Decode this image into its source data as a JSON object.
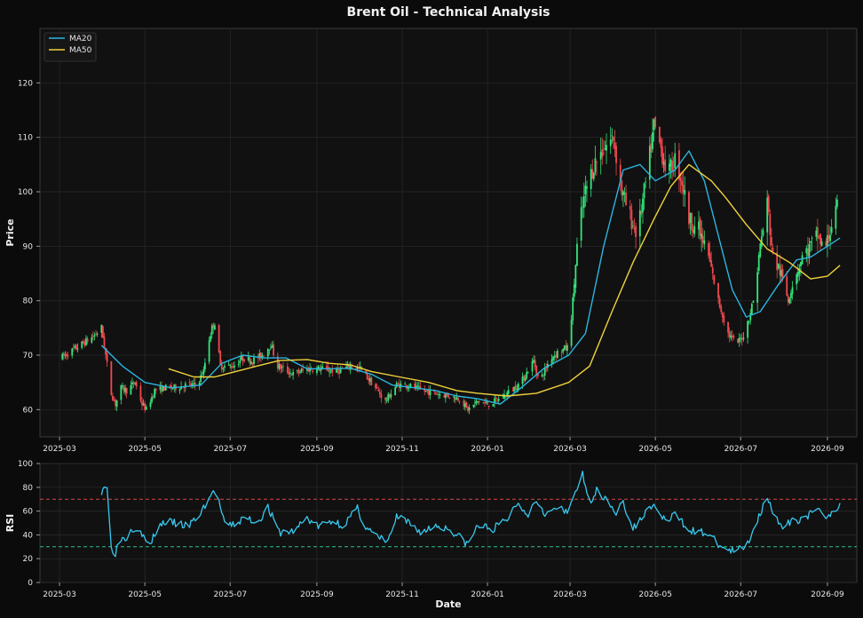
{
  "chart_data": [
    {
      "type": "candlestick",
      "title": "Brent Oil - Technical Analysis",
      "ylabel": "Price",
      "xlim": [
        "2025-02-15",
        "2026-09-22"
      ],
      "ylim": [
        55,
        130
      ],
      "yticks": [
        60,
        70,
        80,
        90,
        100,
        110,
        120
      ],
      "xtick_labels": [
        "2025-03",
        "2025-05",
        "2025-07",
        "2025-09",
        "2025-11",
        "2026-01",
        "2026-03",
        "2026-05",
        "2026-07",
        "2026-09"
      ],
      "grid": true,
      "legend_position": "top-left",
      "colors": {
        "up": "#34e57a",
        "down": "#f0494f",
        "ma20": "#2bb5e0",
        "ma50": "#f0d23c",
        "background": "#0b0b0b",
        "panel": "#111111",
        "text": "#e6e6e6"
      },
      "price_path": [
        [
          "2025-03-02",
          69.5
        ],
        [
          "2025-03-10",
          70.8
        ],
        [
          "2025-03-18",
          72.2
        ],
        [
          "2025-03-26",
          73.6
        ],
        [
          "2025-03-31",
          75
        ],
        [
          "2025-04-03",
          70
        ],
        [
          "2025-04-07",
          63
        ],
        [
          "2025-04-10",
          61
        ],
        [
          "2025-04-14",
          64
        ],
        [
          "2025-04-18",
          63.5
        ],
        [
          "2025-04-24",
          65
        ],
        [
          "2025-04-29",
          61
        ],
        [
          "2025-05-02",
          60
        ],
        [
          "2025-05-08",
          63.5
        ],
        [
          "2025-05-15",
          64
        ],
        [
          "2025-05-22",
          64
        ],
        [
          "2025-05-30",
          64.5
        ],
        [
          "2025-06-07",
          64.5
        ],
        [
          "2025-06-12",
          67
        ],
        [
          "2025-06-15",
          72
        ],
        [
          "2025-06-18",
          75
        ],
        [
          "2025-06-20",
          76
        ],
        [
          "2025-06-24",
          68
        ],
        [
          "2025-07-03",
          68
        ],
        [
          "2025-07-10",
          69.5
        ],
        [
          "2025-07-17",
          69
        ],
        [
          "2025-07-24",
          70
        ],
        [
          "2025-07-30",
          72
        ],
        [
          "2025-08-04",
          68
        ],
        [
          "2025-08-15",
          66.5
        ],
        [
          "2025-08-25",
          67.5
        ],
        [
          "2025-09-05",
          67.5
        ],
        [
          "2025-09-15",
          67
        ],
        [
          "2025-09-25",
          68
        ],
        [
          "2025-10-02",
          67.5
        ],
        [
          "2025-10-10",
          65
        ],
        [
          "2025-10-20",
          61.5
        ],
        [
          "2025-10-28",
          64.5
        ],
        [
          "2025-11-05",
          64.5
        ],
        [
          "2025-11-15",
          63.5
        ],
        [
          "2025-11-25",
          63
        ],
        [
          "2025-12-05",
          62.5
        ],
        [
          "2025-12-12",
          62
        ],
        [
          "2025-12-18",
          60
        ],
        [
          "2025-12-25",
          61.5
        ],
        [
          "2026-01-02",
          61
        ],
        [
          "2026-01-10",
          62
        ],
        [
          "2026-01-20",
          64
        ],
        [
          "2026-01-25",
          65
        ],
        [
          "2026-02-03",
          69
        ],
        [
          "2026-02-07",
          65
        ],
        [
          "2026-02-15",
          69.5
        ],
        [
          "2026-02-20",
          70.5
        ],
        [
          "2026-02-28",
          71.5
        ],
        [
          "2026-03-03",
          80
        ],
        [
          "2026-03-07",
          93
        ],
        [
          "2026-03-12",
          100
        ],
        [
          "2026-03-18",
          105
        ],
        [
          "2026-03-25",
          108
        ],
        [
          "2026-04-01",
          110
        ],
        [
          "2026-04-07",
          100
        ],
        [
          "2026-04-12",
          96
        ],
        [
          "2026-04-18",
          92
        ],
        [
          "2026-04-25",
          103
        ],
        [
          "2026-04-30",
          112
        ],
        [
          "2026-05-05",
          108
        ],
        [
          "2026-05-10",
          103
        ],
        [
          "2026-05-15",
          106
        ],
        [
          "2026-05-20",
          102
        ],
        [
          "2026-05-25",
          95
        ],
        [
          "2026-06-01",
          93
        ],
        [
          "2026-06-08",
          88
        ],
        [
          "2026-06-15",
          80
        ],
        [
          "2026-06-22",
          74
        ],
        [
          "2026-06-28",
          72
        ],
        [
          "2026-07-04",
          74
        ],
        [
          "2026-07-10",
          80
        ],
        [
          "2026-07-15",
          90
        ],
        [
          "2026-07-20",
          98
        ],
        [
          "2026-07-24",
          88
        ],
        [
          "2026-07-30",
          85
        ],
        [
          "2026-08-04",
          80
        ],
        [
          "2026-08-08",
          84
        ],
        [
          "2026-08-14",
          88
        ],
        [
          "2026-08-20",
          90
        ],
        [
          "2026-08-25",
          92
        ],
        [
          "2026-08-30",
          89
        ],
        [
          "2026-09-04",
          94
        ],
        [
          "2026-09-08",
          97
        ]
      ],
      "series": [
        {
          "name": "MA20",
          "points": [
            [
              "2025-03-31",
              71.8
            ],
            [
              "2025-04-15",
              68
            ],
            [
              "2025-05-01",
              65
            ],
            [
              "2025-05-20",
              64
            ],
            [
              "2025-06-10",
              64.5
            ],
            [
              "2025-06-25",
              68.5
            ],
            [
              "2025-07-10",
              70
            ],
            [
              "2025-07-25",
              69.5
            ],
            [
              "2025-08-10",
              69.5
            ],
            [
              "2025-08-25",
              67.5
            ],
            [
              "2025-09-10",
              67.5
            ],
            [
              "2025-09-25",
              67.6
            ],
            [
              "2025-10-10",
              66.5
            ],
            [
              "2025-10-25",
              64.5
            ],
            [
              "2025-11-10",
              64
            ],
            [
              "2025-11-25",
              63.5
            ],
            [
              "2025-12-10",
              62.5
            ],
            [
              "2025-12-25",
              62
            ],
            [
              "2026-01-10",
              61
            ],
            [
              "2026-01-25",
              64
            ],
            [
              "2026-02-10",
              67.5
            ],
            [
              "2026-02-28",
              70
            ],
            [
              "2026-03-12",
              74
            ],
            [
              "2026-03-25",
              90
            ],
            [
              "2026-04-08",
              104
            ],
            [
              "2026-04-20",
              105
            ],
            [
              "2026-05-01",
              102
            ],
            [
              "2026-05-15",
              104
            ],
            [
              "2026-05-25",
              107.5
            ],
            [
              "2026-06-05",
              102
            ],
            [
              "2026-06-15",
              92
            ],
            [
              "2026-06-25",
              82
            ],
            [
              "2026-07-05",
              77
            ],
            [
              "2026-07-15",
              78
            ],
            [
              "2026-07-28",
              83
            ],
            [
              "2026-08-10",
              87.5
            ],
            [
              "2026-08-20",
              88
            ],
            [
              "2026-09-01",
              90
            ],
            [
              "2026-09-10",
              91.5
            ]
          ]
        },
        {
          "name": "MA50",
          "points": [
            [
              "2025-05-18",
              67.5
            ],
            [
              "2025-06-05",
              66
            ],
            [
              "2025-06-20",
              66
            ],
            [
              "2025-07-05",
              67
            ],
            [
              "2025-07-20",
              68
            ],
            [
              "2025-08-05",
              69
            ],
            [
              "2025-08-25",
              69.2
            ],
            [
              "2025-09-10",
              68.5
            ],
            [
              "2025-09-25",
              68.2
            ],
            [
              "2025-10-10",
              67
            ],
            [
              "2025-10-30",
              66
            ],
            [
              "2025-11-20",
              65
            ],
            [
              "2025-12-10",
              63.5
            ],
            [
              "2025-12-25",
              63
            ],
            [
              "2026-01-15",
              62.5
            ],
            [
              "2026-02-05",
              63
            ],
            [
              "2026-02-28",
              65
            ],
            [
              "2026-03-15",
              68
            ],
            [
              "2026-03-31",
              78
            ],
            [
              "2026-04-15",
              87
            ],
            [
              "2026-04-30",
              95
            ],
            [
              "2026-05-12",
              101
            ],
            [
              "2026-05-25",
              105
            ],
            [
              "2026-06-10",
              102
            ],
            [
              "2026-06-20",
              99
            ],
            [
              "2026-07-05",
              94
            ],
            [
              "2026-07-20",
              89.5
            ],
            [
              "2026-08-05",
              87
            ],
            [
              "2026-08-20",
              84
            ],
            [
              "2026-09-01",
              84.5
            ],
            [
              "2026-09-10",
              86.5
            ]
          ]
        }
      ]
    },
    {
      "type": "line",
      "xlabel": "Date",
      "ylabel": "RSI",
      "xlim": [
        "2025-02-15",
        "2026-09-22"
      ],
      "ylim": [
        0,
        100
      ],
      "yticks": [
        0,
        20,
        40,
        60,
        80,
        100
      ],
      "xtick_labels": [
        "2025-03",
        "2025-05",
        "2025-07",
        "2025-09",
        "2025-11",
        "2026-01",
        "2026-03",
        "2026-05",
        "2026-07",
        "2026-09"
      ],
      "reference_lines": [
        {
          "value": 70,
          "color": "#d9444a"
        },
        {
          "value": 30,
          "color": "#2fc28a"
        }
      ],
      "grid": true,
      "colors": {
        "line": "#38c8ee"
      },
      "series": [
        {
          "points": [
            [
              "2025-03-31",
              77
            ],
            [
              "2025-04-02",
              82
            ],
            [
              "2025-04-04",
              79
            ],
            [
              "2025-04-06",
              30
            ],
            [
              "2025-04-10",
              25
            ],
            [
              "2025-04-13",
              37
            ],
            [
              "2025-04-18",
              38
            ],
            [
              "2025-04-22",
              46
            ],
            [
              "2025-04-28",
              45
            ],
            [
              "2025-05-01",
              35
            ],
            [
              "2025-05-05",
              32
            ],
            [
              "2025-05-10",
              46
            ],
            [
              "2025-05-15",
              51
            ],
            [
              "2025-05-22",
              50
            ],
            [
              "2025-06-01",
              47
            ],
            [
              "2025-06-10",
              58
            ],
            [
              "2025-06-15",
              70
            ],
            [
              "2025-06-20",
              77
            ],
            [
              "2025-06-22",
              73
            ],
            [
              "2025-06-27",
              48
            ],
            [
              "2025-07-05",
              49
            ],
            [
              "2025-07-12",
              55
            ],
            [
              "2025-07-20",
              50
            ],
            [
              "2025-07-28",
              63
            ],
            [
              "2025-08-05",
              42
            ],
            [
              "2025-08-15",
              43
            ],
            [
              "2025-08-25",
              54
            ],
            [
              "2025-09-02",
              47
            ],
            [
              "2025-09-12",
              52
            ],
            [
              "2025-09-20",
              48
            ],
            [
              "2025-09-30",
              62
            ],
            [
              "2025-10-05",
              48
            ],
            [
              "2025-10-15",
              37
            ],
            [
              "2025-10-22",
              35
            ],
            [
              "2025-10-28",
              55
            ],
            [
              "2025-11-05",
              50
            ],
            [
              "2025-11-15",
              42
            ],
            [
              "2025-11-25",
              48
            ],
            [
              "2025-12-05",
              45
            ],
            [
              "2025-12-12",
              38
            ],
            [
              "2025-12-18",
              32
            ],
            [
              "2025-12-25",
              48
            ],
            [
              "2026-01-05",
              45
            ],
            [
              "2026-01-15",
              53
            ],
            [
              "2026-01-22",
              67
            ],
            [
              "2026-01-30",
              58
            ],
            [
              "2026-02-05",
              70
            ],
            [
              "2026-02-12",
              57
            ],
            [
              "2026-02-20",
              63
            ],
            [
              "2026-02-28",
              57
            ],
            [
              "2026-03-03",
              72
            ],
            [
              "2026-03-08",
              86
            ],
            [
              "2026-03-10",
              90
            ],
            [
              "2026-03-14",
              67
            ],
            [
              "2026-03-20",
              77
            ],
            [
              "2026-03-28",
              70
            ],
            [
              "2026-04-03",
              58
            ],
            [
              "2026-04-08",
              68
            ],
            [
              "2026-04-14",
              45
            ],
            [
              "2026-04-20",
              52
            ],
            [
              "2026-04-28",
              65
            ],
            [
              "2026-05-04",
              58
            ],
            [
              "2026-05-10",
              50
            ],
            [
              "2026-05-15",
              58
            ],
            [
              "2026-05-22",
              48
            ],
            [
              "2026-05-30",
              42
            ],
            [
              "2026-06-07",
              42
            ],
            [
              "2026-06-14",
              33
            ],
            [
              "2026-06-20",
              28
            ],
            [
              "2026-06-26",
              26
            ],
            [
              "2026-07-05",
              30
            ],
            [
              "2026-07-10",
              45
            ],
            [
              "2026-07-15",
              58
            ],
            [
              "2026-07-20",
              74
            ],
            [
              "2026-07-24",
              60
            ],
            [
              "2026-07-30",
              45
            ],
            [
              "2026-08-05",
              50
            ],
            [
              "2026-08-15",
              55
            ],
            [
              "2026-08-25",
              60
            ],
            [
              "2026-09-01",
              56
            ],
            [
              "2026-09-05",
              61
            ],
            [
              "2026-09-10",
              65
            ]
          ]
        }
      ]
    }
  ]
}
